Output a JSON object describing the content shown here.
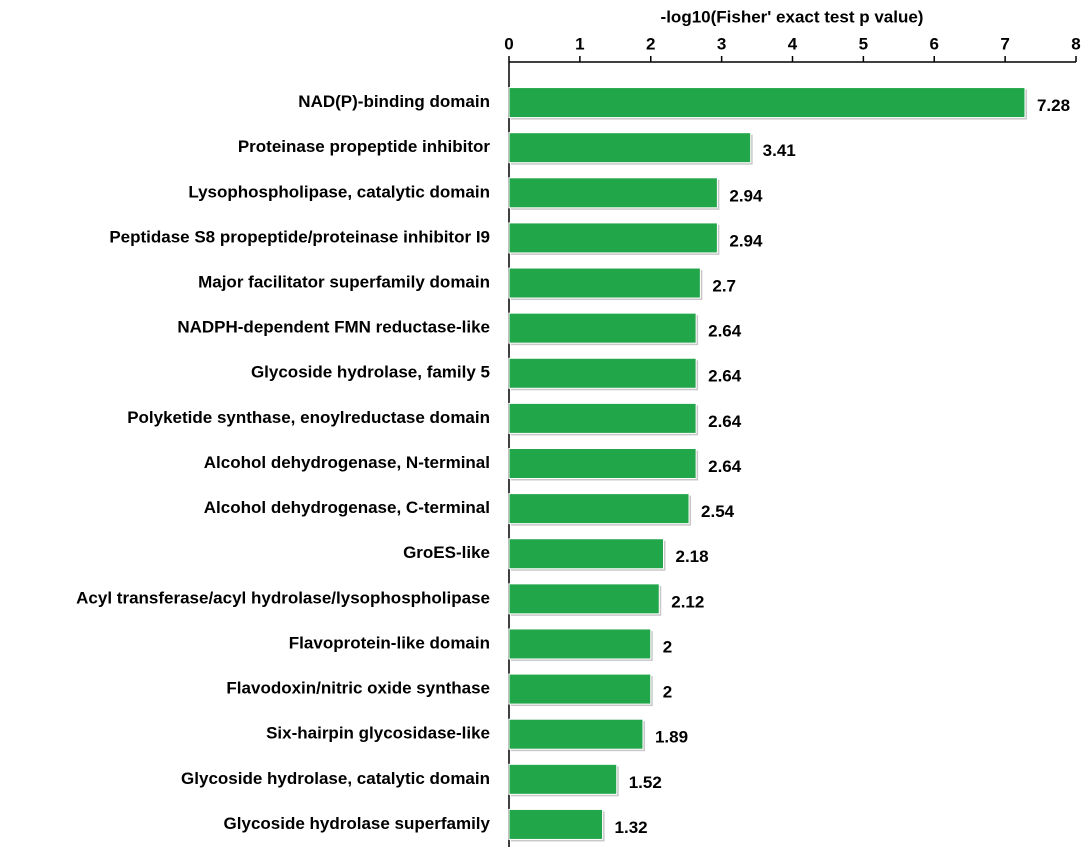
{
  "chart_data": {
    "type": "bar",
    "orientation": "horizontal",
    "x_label": "-log10(Fisher' exact test p value)",
    "categories": [
      "NAD(P)-binding domain",
      "Proteinase propeptide inhibitor",
      "Lysophospholipase, catalytic domain",
      "Peptidase S8 propeptide/proteinase inhibitor I9",
      "Major facilitator superfamily domain",
      "NADPH-dependent FMN reductase-like",
      "Glycoside hydrolase, family 5",
      "Polyketide synthase, enoylreductase domain",
      "Alcohol dehydrogenase, N-terminal",
      "Alcohol dehydrogenase, C-terminal",
      "GroES-like",
      "Acyl transferase/acyl hydrolase/lysophospholipase",
      "Flavoprotein-like domain",
      "Flavodoxin/nitric oxide synthase",
      "Six-hairpin glycosidase-like",
      "Glycoside hydrolase, catalytic domain",
      "Glycoside hydrolase superfamily"
    ],
    "values": [
      7.28,
      3.41,
      2.94,
      2.94,
      2.7,
      2.64,
      2.64,
      2.64,
      2.64,
      2.54,
      2.18,
      2.12,
      2,
      2,
      1.89,
      1.52,
      1.32
    ],
    "color": "#22a64a",
    "xlim": [
      0,
      8
    ],
    "xticks": [
      0,
      1,
      2,
      3,
      4,
      5,
      6,
      7,
      8
    ]
  }
}
